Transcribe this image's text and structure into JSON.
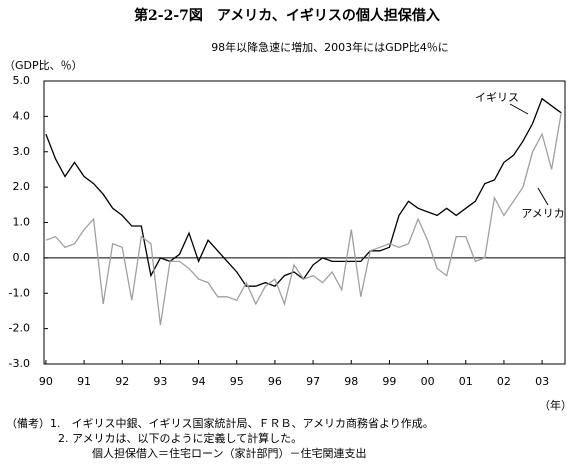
{
  "chart_data": {
    "type": "line",
    "title": "第2-2-7図　アメリカ、イギリスの個人担保借入",
    "subtitle": "98年以降急速に増加、2003年にはGDP比4％に",
    "y_label": "（GDP比、％）",
    "x_label": "（年）",
    "x": [
      1990,
      1990.25,
      1990.5,
      1990.75,
      1991,
      1991.25,
      1991.5,
      1991.75,
      1992,
      1992.25,
      1992.5,
      1992.75,
      1993,
      1993.25,
      1993.5,
      1993.75,
      1994,
      1994.25,
      1994.5,
      1994.75,
      1995,
      1995.25,
      1995.5,
      1995.75,
      1996,
      1996.25,
      1996.5,
      1996.75,
      1997,
      1997.25,
      1997.5,
      1997.75,
      1998,
      1998.25,
      1998.5,
      1998.75,
      1999,
      1999.25,
      1999.5,
      1999.75,
      2000,
      2000.25,
      2000.5,
      2000.75,
      2001,
      2001.25,
      2001.5,
      2001.75,
      2002,
      2002.25,
      2002.5,
      2002.75,
      2003,
      2003.25,
      2003.5
    ],
    "series": [
      {
        "name": "イギリス",
        "color": "#000000",
        "values": [
          3.5,
          2.8,
          2.3,
          2.7,
          2.3,
          2.1,
          1.8,
          1.4,
          1.2,
          0.9,
          0.9,
          -0.5,
          0.0,
          -0.1,
          0.1,
          0.7,
          -0.1,
          0.5,
          0.2,
          -0.1,
          -0.4,
          -0.8,
          -0.8,
          -0.7,
          -0.8,
          -0.5,
          -0.4,
          -0.6,
          -0.2,
          0.0,
          -0.1,
          -0.1,
          -0.1,
          -0.1,
          0.2,
          0.2,
          0.3,
          1.2,
          1.6,
          1.4,
          1.3,
          1.2,
          1.4,
          1.2,
          1.4,
          1.6,
          2.1,
          2.2,
          2.7,
          2.9,
          3.3,
          3.8,
          4.5,
          4.3,
          4.1
        ]
      },
      {
        "name": "アメリカ",
        "color": "#a0a0a0",
        "values": [
          0.5,
          0.6,
          0.3,
          0.4,
          0.8,
          1.1,
          -1.3,
          0.4,
          0.3,
          -1.2,
          0.6,
          0.4,
          -1.9,
          -0.1,
          -0.1,
          -0.3,
          -0.6,
          -0.7,
          -1.1,
          -1.1,
          -1.2,
          -0.7,
          -1.3,
          -0.8,
          -0.6,
          -1.3,
          -0.2,
          -0.6,
          -0.5,
          -0.7,
          -0.4,
          -0.9,
          0.8,
          -1.1,
          0.2,
          0.3,
          0.4,
          0.3,
          0.4,
          1.1,
          0.5,
          -0.3,
          -0.5,
          0.6,
          0.6,
          -0.1,
          0.0,
          1.7,
          1.2,
          1.6,
          2.0,
          3.0,
          3.5,
          2.5,
          4.1
        ]
      }
    ],
    "xlim": [
      1989.95,
      2003.6
    ],
    "xticks": [
      {
        "value": 1990,
        "label": "90"
      },
      {
        "value": 1991,
        "label": "91"
      },
      {
        "value": 1992,
        "label": "92"
      },
      {
        "value": 1993,
        "label": "93"
      },
      {
        "value": 1994,
        "label": "94"
      },
      {
        "value": 1995,
        "label": "95"
      },
      {
        "value": 1996,
        "label": "96"
      },
      {
        "value": 1997,
        "label": "97"
      },
      {
        "value": 1998,
        "label": "98"
      },
      {
        "value": 1999,
        "label": "99"
      },
      {
        "value": 2000,
        "label": "00"
      },
      {
        "value": 2001,
        "label": "01"
      },
      {
        "value": 2002,
        "label": "02"
      },
      {
        "value": 2003,
        "label": "03"
      }
    ],
    "ylim": [
      -3,
      5
    ],
    "yticks": [
      {
        "value": -3,
        "label": "-3.0"
      },
      {
        "value": -2,
        "label": "-2.0"
      },
      {
        "value": -1,
        "label": "-1.0"
      },
      {
        "value": 0,
        "label": "0.0"
      },
      {
        "value": 1,
        "label": "1.0"
      },
      {
        "value": 2,
        "label": "2.0"
      },
      {
        "value": 3,
        "label": "3.0"
      },
      {
        "value": 4,
        "label": "4.0"
      },
      {
        "value": 5,
        "label": "5.0"
      }
    ],
    "grid": false,
    "notes": [
      "（備考）1.　イギリス中銀、イギリス国家統計局、ＦＲＢ、アメリカ商務省より作成。",
      "2. アメリカは、以下のように定義して計算した。",
      "個人担保借入＝住宅ローン（家計部門）－住宅関連支出"
    ]
  }
}
